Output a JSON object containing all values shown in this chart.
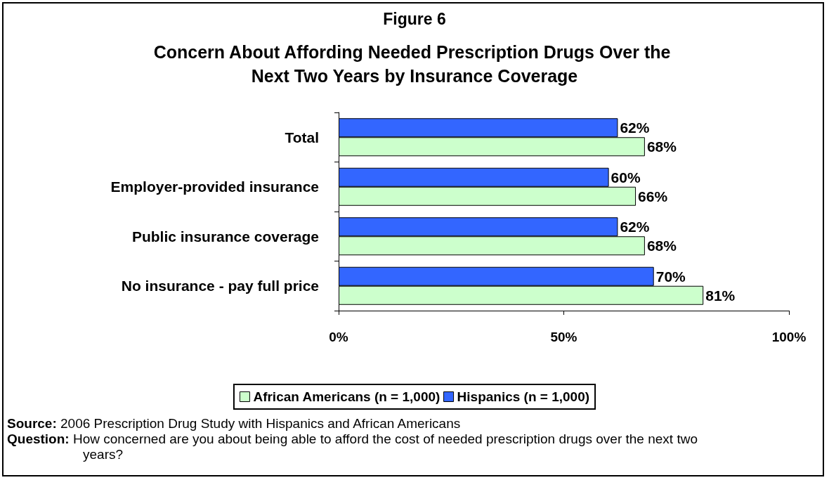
{
  "chart_data": {
    "type": "bar",
    "orientation": "horizontal",
    "title": "Figure 6",
    "subtitle": "Concern About Affording Needed Prescription Drugs Over the Next Two Years by Insurance Coverage",
    "categories": [
      "Total",
      "Employer-provided insurance",
      "Public insurance coverage",
      "No insurance - pay full price"
    ],
    "series": [
      {
        "name": "African Americans (n = 1,000)",
        "color": "#ccffcc",
        "values": [
          68,
          66,
          68,
          81
        ],
        "value_labels": [
          "68%",
          "66%",
          "68%",
          "81%"
        ]
      },
      {
        "name": "Hispanics (n = 1,000)",
        "color": "#3366ff",
        "values": [
          62,
          60,
          62,
          70
        ],
        "value_labels": [
          "62%",
          "60%",
          "62%",
          "70%"
        ]
      }
    ],
    "xlim": [
      0,
      100
    ],
    "xticks": [
      {
        "value": 0,
        "label": "0%"
      },
      {
        "value": 50,
        "label": "50%"
      },
      {
        "value": 100,
        "label": "100%"
      }
    ],
    "grid": false,
    "legend": "bottom",
    "annotations": [
      "Source: 2006 Prescription Drug Study with Hispanics and African Americans",
      "Question: How concerned are you about being able to afford the cost of needed prescription drugs over the next two years?"
    ]
  }
}
